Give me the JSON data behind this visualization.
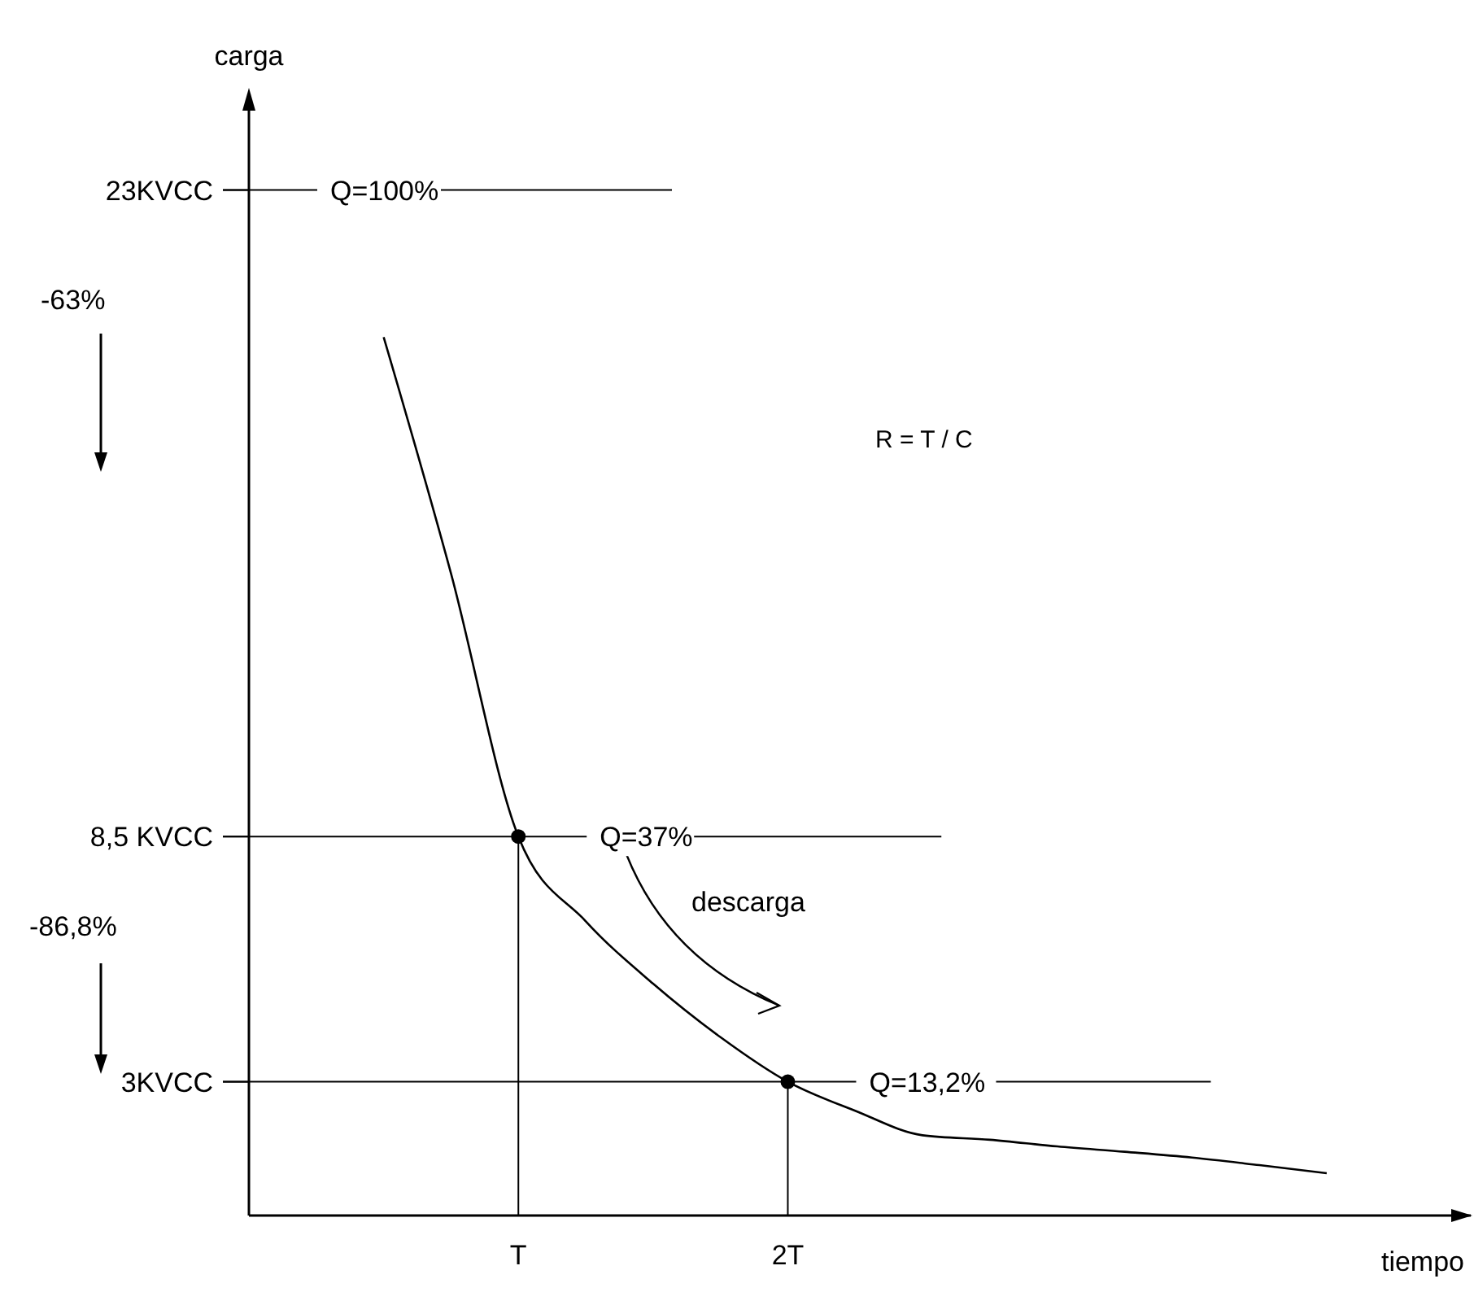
{
  "chart_data": {
    "type": "line",
    "xlabel": "tiempo",
    "ylabel": "carga",
    "categories": [
      null,
      null,
      null,
      null,
      "T",
      null,
      null,
      null,
      "2T",
      null,
      null,
      null,
      null,
      null,
      null,
      null,
      null,
      null
    ],
    "ylim": [
      0,
      25
    ],
    "yticks": [
      {
        "value": 3,
        "label": "3KVCC"
      },
      {
        "value": 8.5,
        "label": "8,5 KVCC"
      },
      {
        "value": 23,
        "label": "23KVCC"
      }
    ],
    "series": [
      {
        "color": "#000000",
        "marker": "none",
        "values": [
          null,
          null,
          19.7,
          14.4,
          8.5,
          6.6,
          5.2,
          4.0,
          3,
          2.35,
          1.8,
          1.7,
          1.55,
          1.43,
          1.3,
          1.13,
          0.95,
          null
        ]
      },
      {
        "color": "#000000",
        "marker": "none",
        "x": [
          "T",
          "T"
        ],
        "values": [
          0,
          8.5
        ]
      },
      {
        "color": "#000000",
        "marker": "none",
        "x": [
          "2T",
          "2T"
        ],
        "values": [
          0,
          3
        ]
      },
      {
        "type": "scatter",
        "color": "#000000",
        "marker": "circle",
        "x": [
          "T",
          "2T"
        ],
        "values": [
          8.5,
          3
        ]
      }
    ],
    "ref_lines": [
      {
        "axis": "y",
        "value": 23
      },
      {
        "axis": "y",
        "value": 8.5
      },
      {
        "axis": "y",
        "value": 3
      }
    ],
    "annotations": [
      "-63%",
      "-86,8%",
      "descarga",
      "R = T / C",
      {
        "text": "Q=100%",
        "y": 23
      },
      {
        "text": "Q=37%",
        "y": 8.5
      },
      {
        "text": "Q=13,2%",
        "y": 3
      }
    ],
    "grid": false
  }
}
